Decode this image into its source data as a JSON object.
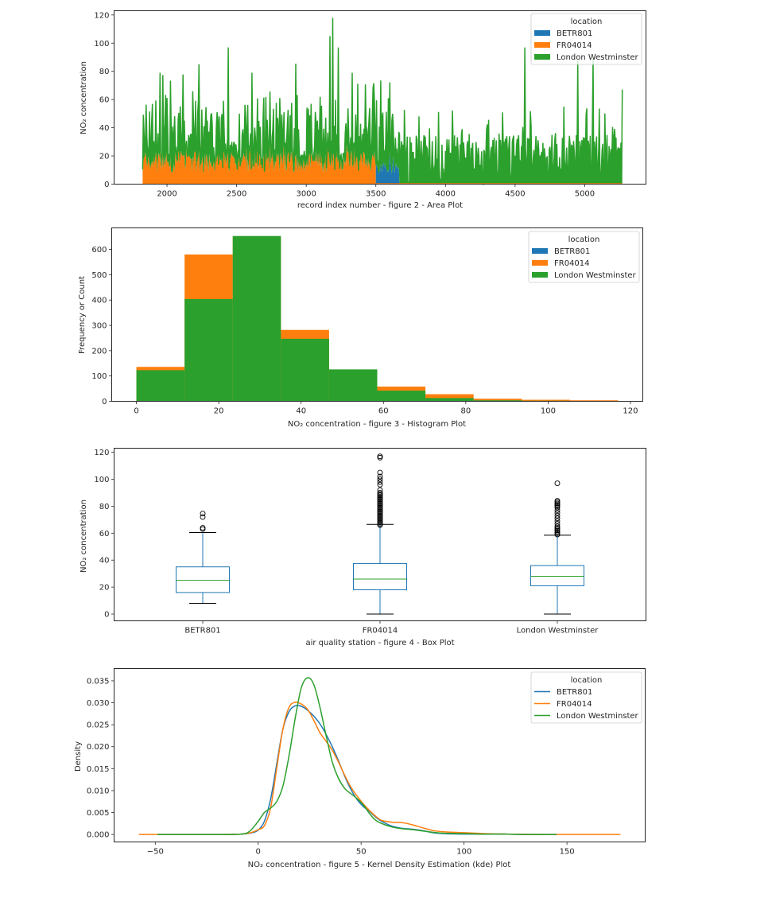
{
  "colors": {
    "BETR801": "#1f77b4",
    "FR04014": "#ff7f0e",
    "London Westminster": "#2ca02c",
    "median": "#2ca02c",
    "axis": "#262626"
  },
  "chart_data": [
    {
      "id": "area",
      "type": "area",
      "title": "",
      "xlabel": "record index number  -  figure 2 - Area Plot",
      "ylabel": "NO₂ concentration",
      "xlim": [
        1620,
        5440
      ],
      "ylim": [
        0,
        123
      ],
      "xticks": [
        2000,
        2500,
        3000,
        3500,
        4000,
        4500,
        5000
      ],
      "yticks": [
        0,
        20,
        40,
        60,
        80,
        100,
        120
      ],
      "legend": {
        "title": "location",
        "position": "top-right",
        "entries": [
          "BETR801",
          "FR04014",
          "London Westminster"
        ]
      },
      "stacked": true,
      "segments": [
        {
          "series": "FR04014",
          "x_range": [
            1825,
            3500
          ],
          "typical_range": [
            8,
            30
          ],
          "note": "orange base layer"
        },
        {
          "series": "BETR801",
          "x_range": [
            3500,
            3670
          ],
          "typical_range": [
            7,
            25
          ],
          "note": "blue base layer"
        },
        {
          "series": "London Westminster",
          "x_range": [
            1825,
            5270
          ],
          "typical_range": [
            10,
            60
          ],
          "note": "green top layer (stacked)"
        }
      ],
      "peaks": [
        {
          "x": 3190,
          "y": 118
        },
        {
          "x": 3170,
          "y": 105
        },
        {
          "x": 2440,
          "y": 97
        },
        {
          "x": 4570,
          "y": 97
        },
        {
          "x": 3230,
          "y": 97
        },
        {
          "x": 2230,
          "y": 85
        },
        {
          "x": 4950,
          "y": 88
        },
        {
          "x": 5060,
          "y": 90
        },
        {
          "x": 1950,
          "y": 79
        },
        {
          "x": 3330,
          "y": 79
        },
        {
          "x": 5270,
          "y": 67
        }
      ]
    },
    {
      "id": "histogram",
      "type": "bar",
      "title": "",
      "xlabel": "NO₂ concentration  -  figure 3 - Histogram Plot",
      "ylabel": "Frequency or Count",
      "xlim": [
        -6,
        123
      ],
      "ylim": [
        0,
        685
      ],
      "xticks": [
        0,
        20,
        40,
        60,
        80,
        100,
        120
      ],
      "yticks": [
        0,
        100,
        200,
        300,
        400,
        500,
        600
      ],
      "legend": {
        "title": "location",
        "position": "top-right",
        "entries": [
          "BETR801",
          "FR04014",
          "London Westminster"
        ]
      },
      "bin_edges": [
        0,
        11.7,
        23.4,
        35.1,
        46.8,
        58.5,
        70.2,
        81.9,
        93.6,
        105.3,
        117
      ],
      "series": [
        {
          "name": "BETR801",
          "values": [
            0,
            0,
            0,
            0,
            0,
            0,
            0,
            0,
            0,
            0
          ]
        },
        {
          "name": "FR04014",
          "values": [
            136,
            580,
            650,
            282,
            125,
            58,
            28,
            10,
            6,
            4
          ]
        },
        {
          "name": "London Westminster",
          "values": [
            123,
            404,
            653,
            247,
            126,
            42,
            13,
            4,
            2,
            0
          ]
        }
      ]
    },
    {
      "id": "box",
      "type": "box",
      "title": "",
      "xlabel": "air quality station  -  figure 4 - Box Plot",
      "ylabel": "NO₂ concentration",
      "ylim": [
        -5,
        123
      ],
      "yticks": [
        0,
        20,
        40,
        60,
        80,
        100,
        120
      ],
      "categories": [
        "BETR801",
        "FR04014",
        "London Westminster"
      ],
      "boxes": [
        {
          "name": "BETR801",
          "whisker_low": 8,
          "q1": 16,
          "median": 25,
          "q3": 35,
          "whisker_high": 60.5,
          "outliers": [
            63,
            64,
            72,
            74.5
          ]
        },
        {
          "name": "FR04014",
          "whisker_low": 0,
          "q1": 18,
          "median": 26,
          "q3": 37.5,
          "whisker_high": 66.5,
          "outliers": [
            66,
            67,
            68,
            69,
            70,
            71,
            72,
            73,
            74,
            75,
            76,
            77,
            78,
            79,
            80,
            81,
            82,
            83,
            84,
            85,
            86,
            87,
            88,
            89,
            90,
            92,
            96,
            98,
            100,
            102,
            105,
            116,
            117
          ]
        },
        {
          "name": "London Westminster",
          "whisker_low": 0,
          "q1": 21,
          "median": 28,
          "q3": 36,
          "whisker_high": 58.5,
          "outliers": [
            59,
            60,
            61,
            62,
            63,
            64,
            65,
            67,
            69,
            71,
            73,
            75,
            77,
            79,
            80,
            81,
            82,
            83,
            84,
            97
          ]
        }
      ]
    },
    {
      "id": "kde",
      "type": "line",
      "title": "",
      "xlabel": "NO₂ concentration  -  figure 5 - Kernel Density Estimation (kde) Plot",
      "ylabel": "Density",
      "xlim": [
        -70,
        188
      ],
      "ylim": [
        -0.0017,
        0.0378
      ],
      "xticks": [
        -50,
        0,
        50,
        100,
        150
      ],
      "yticks": [
        0.0,
        0.005,
        0.01,
        0.015,
        0.02,
        0.025,
        0.03,
        0.035
      ],
      "ytick_labels": [
        "0.000",
        "0.005",
        "0.010",
        "0.015",
        "0.020",
        "0.025",
        "0.030",
        "0.035"
      ],
      "legend": {
        "title": "location",
        "position": "top-right",
        "entries": [
          "BETR801",
          "FR04014",
          "London Westminster"
        ]
      },
      "series": [
        {
          "name": "BETR801",
          "x": [
            -49,
            -20,
            -8,
            -3,
            0,
            3,
            6,
            9,
            12,
            15,
            18,
            21,
            24,
            27,
            30,
            33,
            36,
            39,
            42,
            45,
            48,
            51,
            54,
            57,
            60,
            65,
            70,
            75,
            80,
            85,
            90,
            100,
            110,
            120,
            130,
            145
          ],
          "y": [
            0,
            0,
            0.0001,
            0.0004,
            0.001,
            0.003,
            0.008,
            0.016,
            0.024,
            0.028,
            0.0293,
            0.0292,
            0.0283,
            0.027,
            0.0252,
            0.0228,
            0.02,
            0.0168,
            0.0133,
            0.0103,
            0.008,
            0.0064,
            0.0053,
            0.004,
            0.003,
            0.0019,
            0.0014,
            0.0012,
            0.0009,
            0.0004,
            0.0002,
            0.0001,
            0.0001,
            0.0001,
            0,
            0
          ]
        },
        {
          "name": "FR04014",
          "x": [
            -58,
            -20,
            -8,
            -3,
            0,
            3,
            6,
            9,
            12,
            15,
            18,
            21,
            24,
            27,
            30,
            33,
            36,
            39,
            42,
            45,
            48,
            51,
            54,
            57,
            60,
            65,
            70,
            75,
            80,
            85,
            90,
            100,
            110,
            120,
            140,
            160,
            176
          ],
          "y": [
            0,
            0,
            0.0001,
            0.0005,
            0.0011,
            0.002,
            0.006,
            0.015,
            0.024,
            0.029,
            0.0301,
            0.0297,
            0.0285,
            0.026,
            0.0232,
            0.0212,
            0.0192,
            0.0165,
            0.0135,
            0.0108,
            0.0088,
            0.007,
            0.0055,
            0.0042,
            0.0032,
            0.0028,
            0.0027,
            0.0022,
            0.0015,
            0.0009,
            0.0006,
            0.0004,
            0.0002,
            0.0001,
            0,
            0,
            0
          ]
        },
        {
          "name": "London Westminster",
          "x": [
            -49,
            -20,
            -8,
            -4,
            0,
            3,
            6,
            9,
            12,
            15,
            18,
            21,
            24,
            27,
            30,
            33,
            36,
            39,
            42,
            45,
            48,
            51,
            54,
            57,
            60,
            65,
            70,
            75,
            80,
            85,
            90,
            100,
            110,
            120,
            130,
            145
          ],
          "y": [
            0,
            0,
            0.0001,
            0.0008,
            0.003,
            0.005,
            0.006,
            0.0075,
            0.011,
            0.018,
            0.0265,
            0.0335,
            0.0357,
            0.0342,
            0.029,
            0.0225,
            0.0165,
            0.0128,
            0.0105,
            0.0093,
            0.0082,
            0.0068,
            0.0048,
            0.0033,
            0.0025,
            0.0017,
            0.0013,
            0.0011,
            0.0008,
            0.0005,
            0.0003,
            0.0002,
            0.0001,
            0.0001,
            0,
            0
          ]
        }
      ]
    }
  ]
}
